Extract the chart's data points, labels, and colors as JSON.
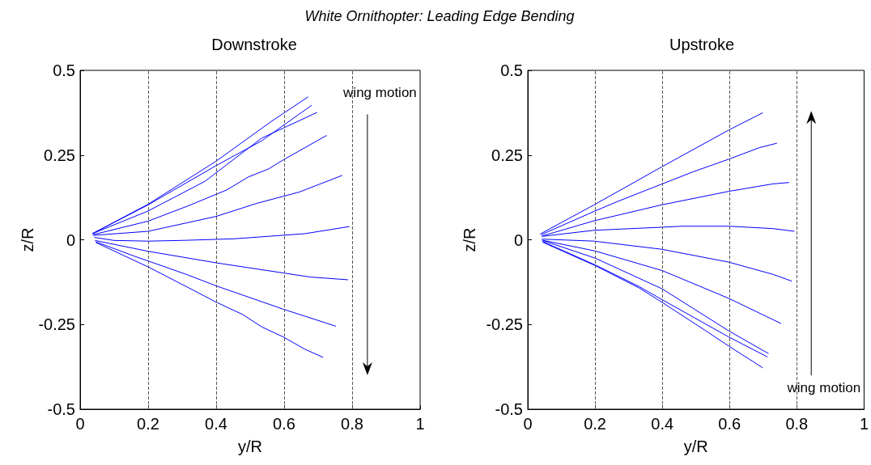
{
  "chart_data": [
    {
      "type": "line",
      "title": "White Ornithopter: Leading Edge Bending",
      "subtitle": "Downstroke",
      "xlabel": "y/R",
      "ylabel": "z/R",
      "xlim": [
        0,
        1
      ],
      "ylim": [
        -0.5,
        0.5
      ],
      "xticks": [
        0,
        0.2,
        0.4,
        0.6,
        0.8,
        1
      ],
      "yticks": [
        -0.5,
        -0.25,
        0,
        0.25,
        0.5
      ],
      "marker": "none",
      "line_style": "solid",
      "annotations": [
        "wing motion"
      ],
      "ref_lines": [
        {
          "axis": "x",
          "value": 0.2,
          "color": "#555555",
          "line_style": "dashed"
        },
        {
          "axis": "x",
          "value": 0.4,
          "color": "#555555",
          "line_style": "dashed"
        },
        {
          "axis": "x",
          "value": 0.6,
          "color": "#555555",
          "line_style": "dashed"
        },
        {
          "axis": "x",
          "value": 0.8,
          "color": "#555555",
          "line_style": "dashed"
        }
      ],
      "series": [
        {
          "color": "#0000ff",
          "x": [
            0.036,
            0.2,
            0.4,
            0.562,
            0.671
          ],
          "values": [
            0.018,
            0.105,
            0.232,
            0.349,
            0.422
          ]
        },
        {
          "color": "#0000ff",
          "x": [
            0.036,
            0.2,
            0.4,
            0.534,
            0.681
          ],
          "values": [
            0.018,
            0.103,
            0.219,
            0.292,
            0.397
          ]
        },
        {
          "color": "#0000ff",
          "x": [
            0.036,
            0.2,
            0.368,
            0.4,
            0.534,
            0.697
          ],
          "values": [
            0.018,
            0.085,
            0.173,
            0.198,
            0.3,
            0.376
          ]
        },
        {
          "color": "#0000ff",
          "x": [
            0.038,
            0.2,
            0.32,
            0.431,
            0.494,
            0.554,
            0.598,
            0.725
          ],
          "values": [
            0.015,
            0.055,
            0.101,
            0.147,
            0.185,
            0.209,
            0.236,
            0.308
          ]
        },
        {
          "color": "#0000ff",
          "x": [
            0.038,
            0.2,
            0.4,
            0.518,
            0.645,
            0.771
          ],
          "values": [
            0.013,
            0.025,
            0.069,
            0.107,
            0.141,
            0.19
          ]
        },
        {
          "color": "#0000ff",
          "x": [
            0.042,
            0.1,
            0.2,
            0.296,
            0.455,
            0.661,
            0.792
          ],
          "values": [
            0.007,
            -0.002,
            -0.004,
            -0.002,
            0.003,
            0.018,
            0.039
          ]
        },
        {
          "color": "#0000ff",
          "x": [
            0.044,
            0.2,
            0.4,
            0.598,
            0.677,
            0.788
          ],
          "values": [
            -0.002,
            -0.034,
            -0.068,
            -0.098,
            -0.11,
            -0.118
          ]
        },
        {
          "color": "#0000ff",
          "x": [
            0.046,
            0.153,
            0.312,
            0.4,
            0.598,
            0.752
          ],
          "values": [
            -0.006,
            -0.046,
            -0.102,
            -0.136,
            -0.205,
            -0.255
          ]
        },
        {
          "color": "#0000ff",
          "x": [
            0.046,
            0.2,
            0.312,
            0.4,
            0.479,
            0.534,
            0.598,
            0.661,
            0.715
          ],
          "values": [
            -0.008,
            -0.08,
            -0.138,
            -0.184,
            -0.221,
            -0.257,
            -0.287,
            -0.323,
            -0.347
          ]
        }
      ]
    },
    {
      "type": "line",
      "subtitle": "Upstroke",
      "xlabel": "y/R",
      "ylabel": "z/R",
      "xlim": [
        0,
        1
      ],
      "ylim": [
        -0.5,
        0.5
      ],
      "xticks": [
        0,
        0.2,
        0.4,
        0.6,
        0.8,
        1
      ],
      "yticks": [
        -0.5,
        -0.25,
        0,
        0.25,
        0.5
      ],
      "marker": "none",
      "line_style": "solid",
      "annotations": [
        "wing motion"
      ],
      "ref_lines": [
        {
          "axis": "x",
          "value": 0.2,
          "color": "#555555",
          "line_style": "dashed"
        },
        {
          "axis": "x",
          "value": 0.4,
          "color": "#555555",
          "line_style": "dashed"
        },
        {
          "axis": "x",
          "value": 0.6,
          "color": "#555555",
          "line_style": "dashed"
        },
        {
          "axis": "x",
          "value": 0.8,
          "color": "#555555",
          "line_style": "dashed"
        }
      ],
      "series": [
        {
          "color": "#0000ff",
          "x": [
            0.037,
            0.197,
            0.398,
            0.598,
            0.699
          ],
          "values": [
            0.017,
            0.103,
            0.215,
            0.324,
            0.375
          ]
        },
        {
          "color": "#0000ff",
          "x": [
            0.04,
            0.2,
            0.267,
            0.4,
            0.49,
            0.598,
            0.689,
            0.741
          ],
          "values": [
            0.015,
            0.085,
            0.113,
            0.165,
            0.2,
            0.238,
            0.272,
            0.285
          ]
        },
        {
          "color": "#0000ff",
          "x": [
            0.042,
            0.197,
            0.398,
            0.598,
            0.729,
            0.777
          ],
          "values": [
            0.011,
            0.056,
            0.103,
            0.143,
            0.165,
            0.169
          ]
        },
        {
          "color": "#0000ff",
          "x": [
            0.042,
            0.197,
            0.398,
            0.458,
            0.598,
            0.729,
            0.793
          ],
          "values": [
            0.01,
            0.028,
            0.037,
            0.04,
            0.04,
            0.033,
            0.025
          ]
        },
        {
          "color": "#0000ff",
          "x": [
            0.042,
            0.197,
            0.398,
            0.598,
            0.729,
            0.785
          ],
          "values": [
            0.002,
            -0.004,
            -0.028,
            -0.066,
            -0.102,
            -0.122
          ]
        },
        {
          "color": "#0000ff",
          "x": [
            0.042,
            0.2,
            0.4,
            0.598,
            0.753
          ],
          "values": [
            -0.001,
            -0.033,
            -0.091,
            -0.173,
            -0.247
          ]
        },
        {
          "color": "#0000ff",
          "x": [
            0.044,
            0.2,
            0.4,
            0.598,
            0.716
          ],
          "values": [
            -0.002,
            -0.054,
            -0.145,
            -0.269,
            -0.336
          ]
        },
        {
          "color": "#0000ff",
          "x": [
            0.044,
            0.2,
            0.331,
            0.4,
            0.598,
            0.713
          ],
          "values": [
            -0.005,
            -0.074,
            -0.138,
            -0.177,
            -0.287,
            -0.346
          ]
        },
        {
          "color": "#0000ff",
          "x": [
            0.044,
            0.2,
            0.331,
            0.4,
            0.53,
            0.598,
            0.699
          ],
          "values": [
            -0.007,
            -0.076,
            -0.142,
            -0.185,
            -0.269,
            -0.314,
            -0.378
          ]
        }
      ]
    }
  ]
}
